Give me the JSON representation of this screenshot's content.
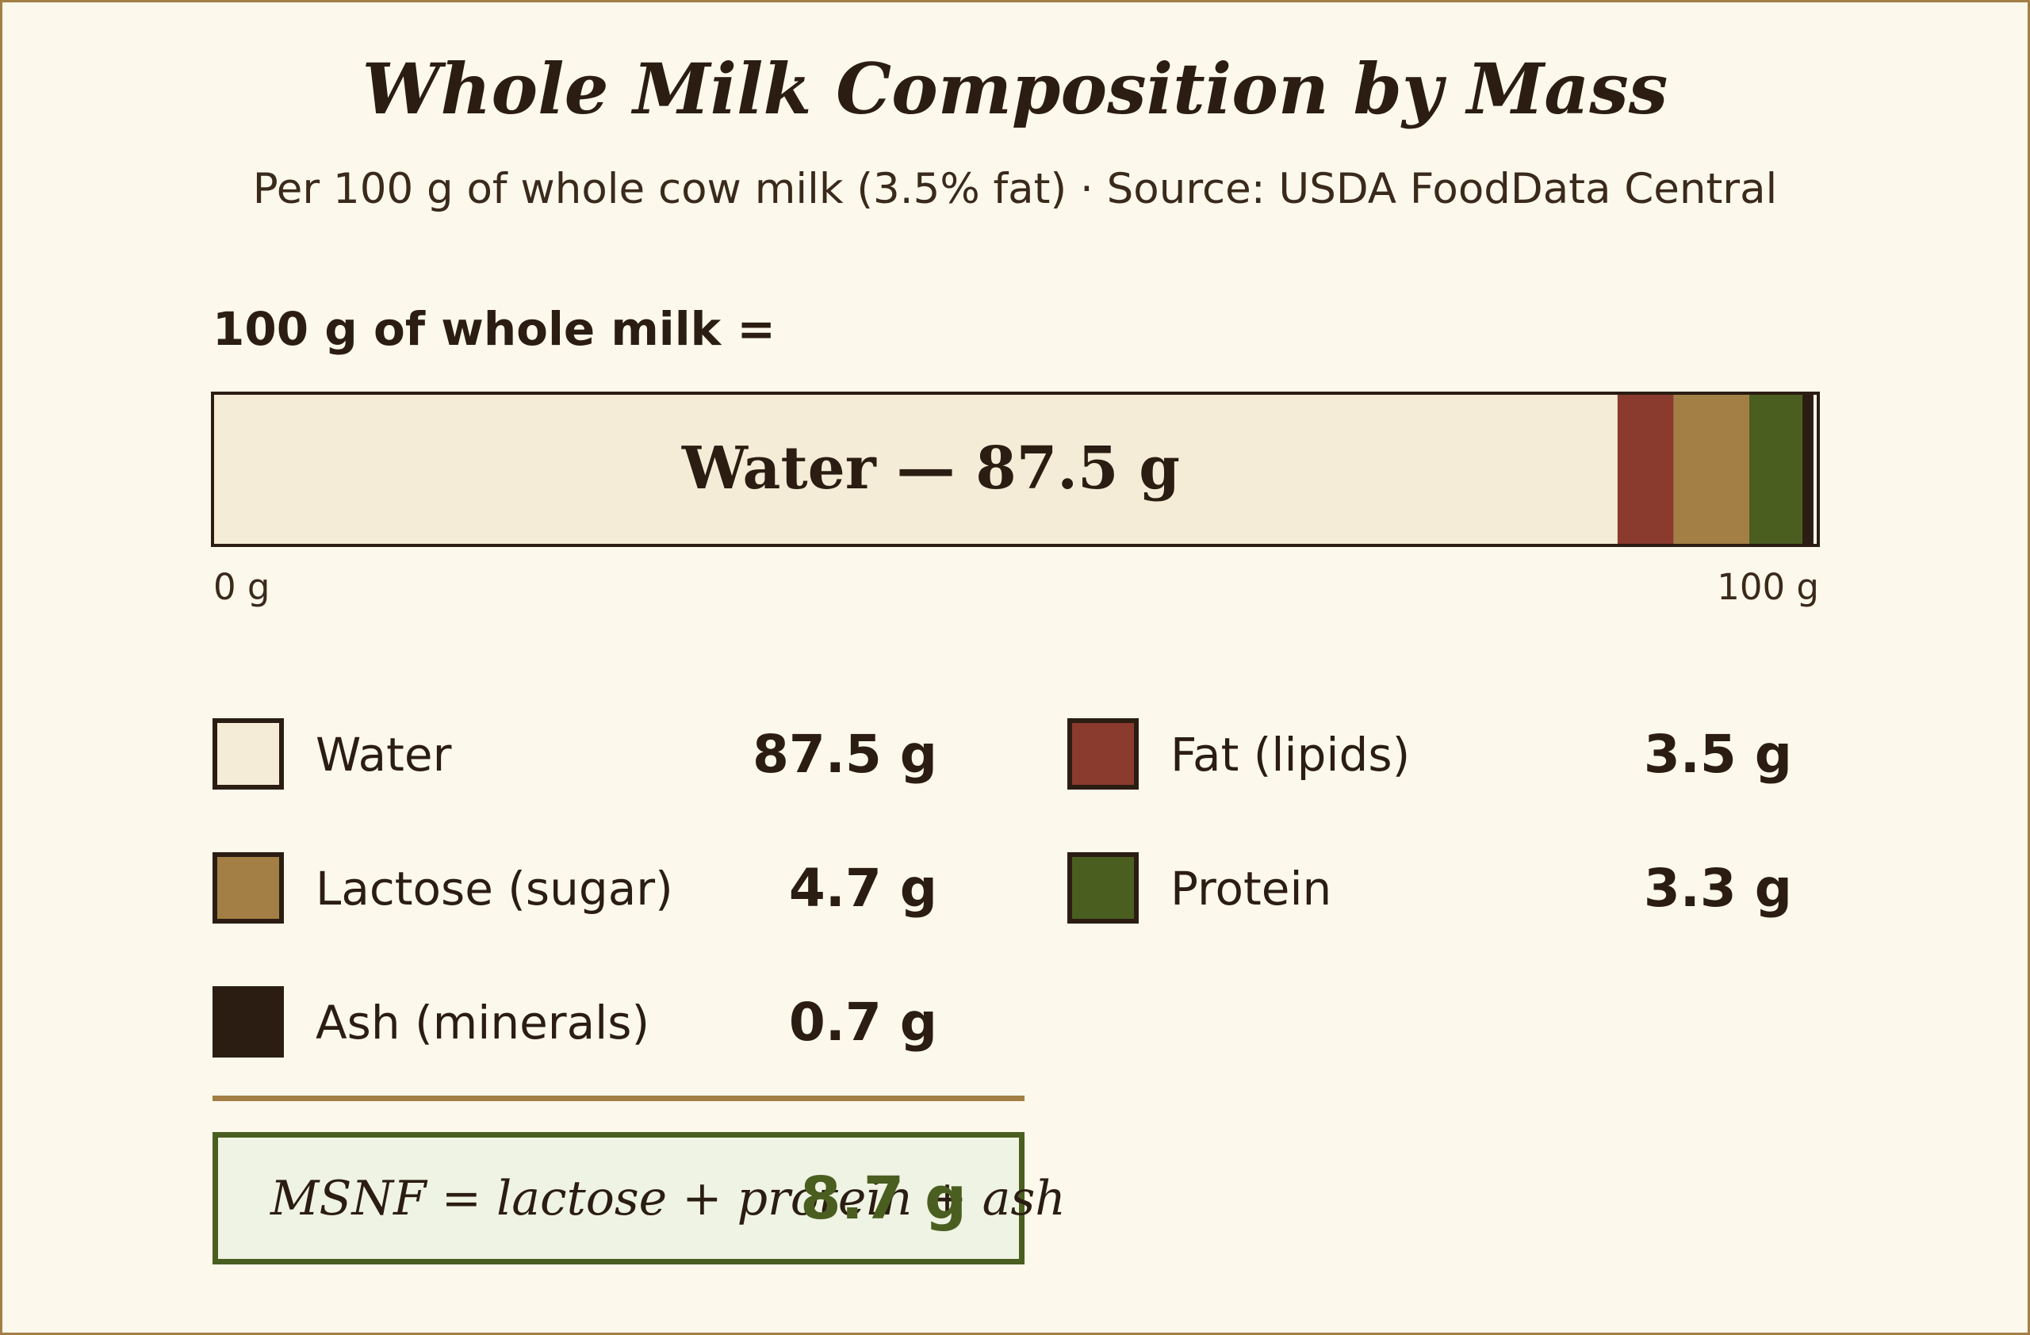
{
  "title": "Whole Milk Composition by Mass",
  "subtitle": "Per 100 g of whole cow milk (3.5% fat) · Source: USDA FoodData Central",
  "bar_heading": "100 g of whole milk =",
  "bar_inner_label": "Water — 87.5 g",
  "chart_data": {
    "type": "bar",
    "stacked": true,
    "orientation": "horizontal",
    "unit": "g",
    "total": 100,
    "xlim": [
      0,
      100
    ],
    "axis_start_label": "0 g",
    "axis_end_label": "100 g",
    "series": [
      {
        "name": "Water",
        "value": 87.5,
        "value_label": "87.5 g",
        "color": "#f5ecd7"
      },
      {
        "name": "Fat (lipids)",
        "value": 3.5,
        "value_label": "3.5 g",
        "color": "#8b3a2e"
      },
      {
        "name": "Lactose (sugar)",
        "value": 4.7,
        "value_label": "4.7 g",
        "color": "#a37f45"
      },
      {
        "name": "Protein",
        "value": 3.3,
        "value_label": "3.3 g",
        "color": "#4a5e20"
      },
      {
        "name": "Ash (minerals)",
        "value": 0.7,
        "value_label": "0.7 g",
        "color": "#2b1d12"
      }
    ],
    "legend_order": [
      0,
      1,
      2,
      3,
      4
    ]
  },
  "msnf": {
    "formula": "MSNF = lactose + protein + ash",
    "value": "8.7 g"
  },
  "colors": {
    "background": "#fdf8ec",
    "ink": "#2b1d12",
    "accent_gold": "#a37f45",
    "accent_green": "#4a5e20"
  }
}
